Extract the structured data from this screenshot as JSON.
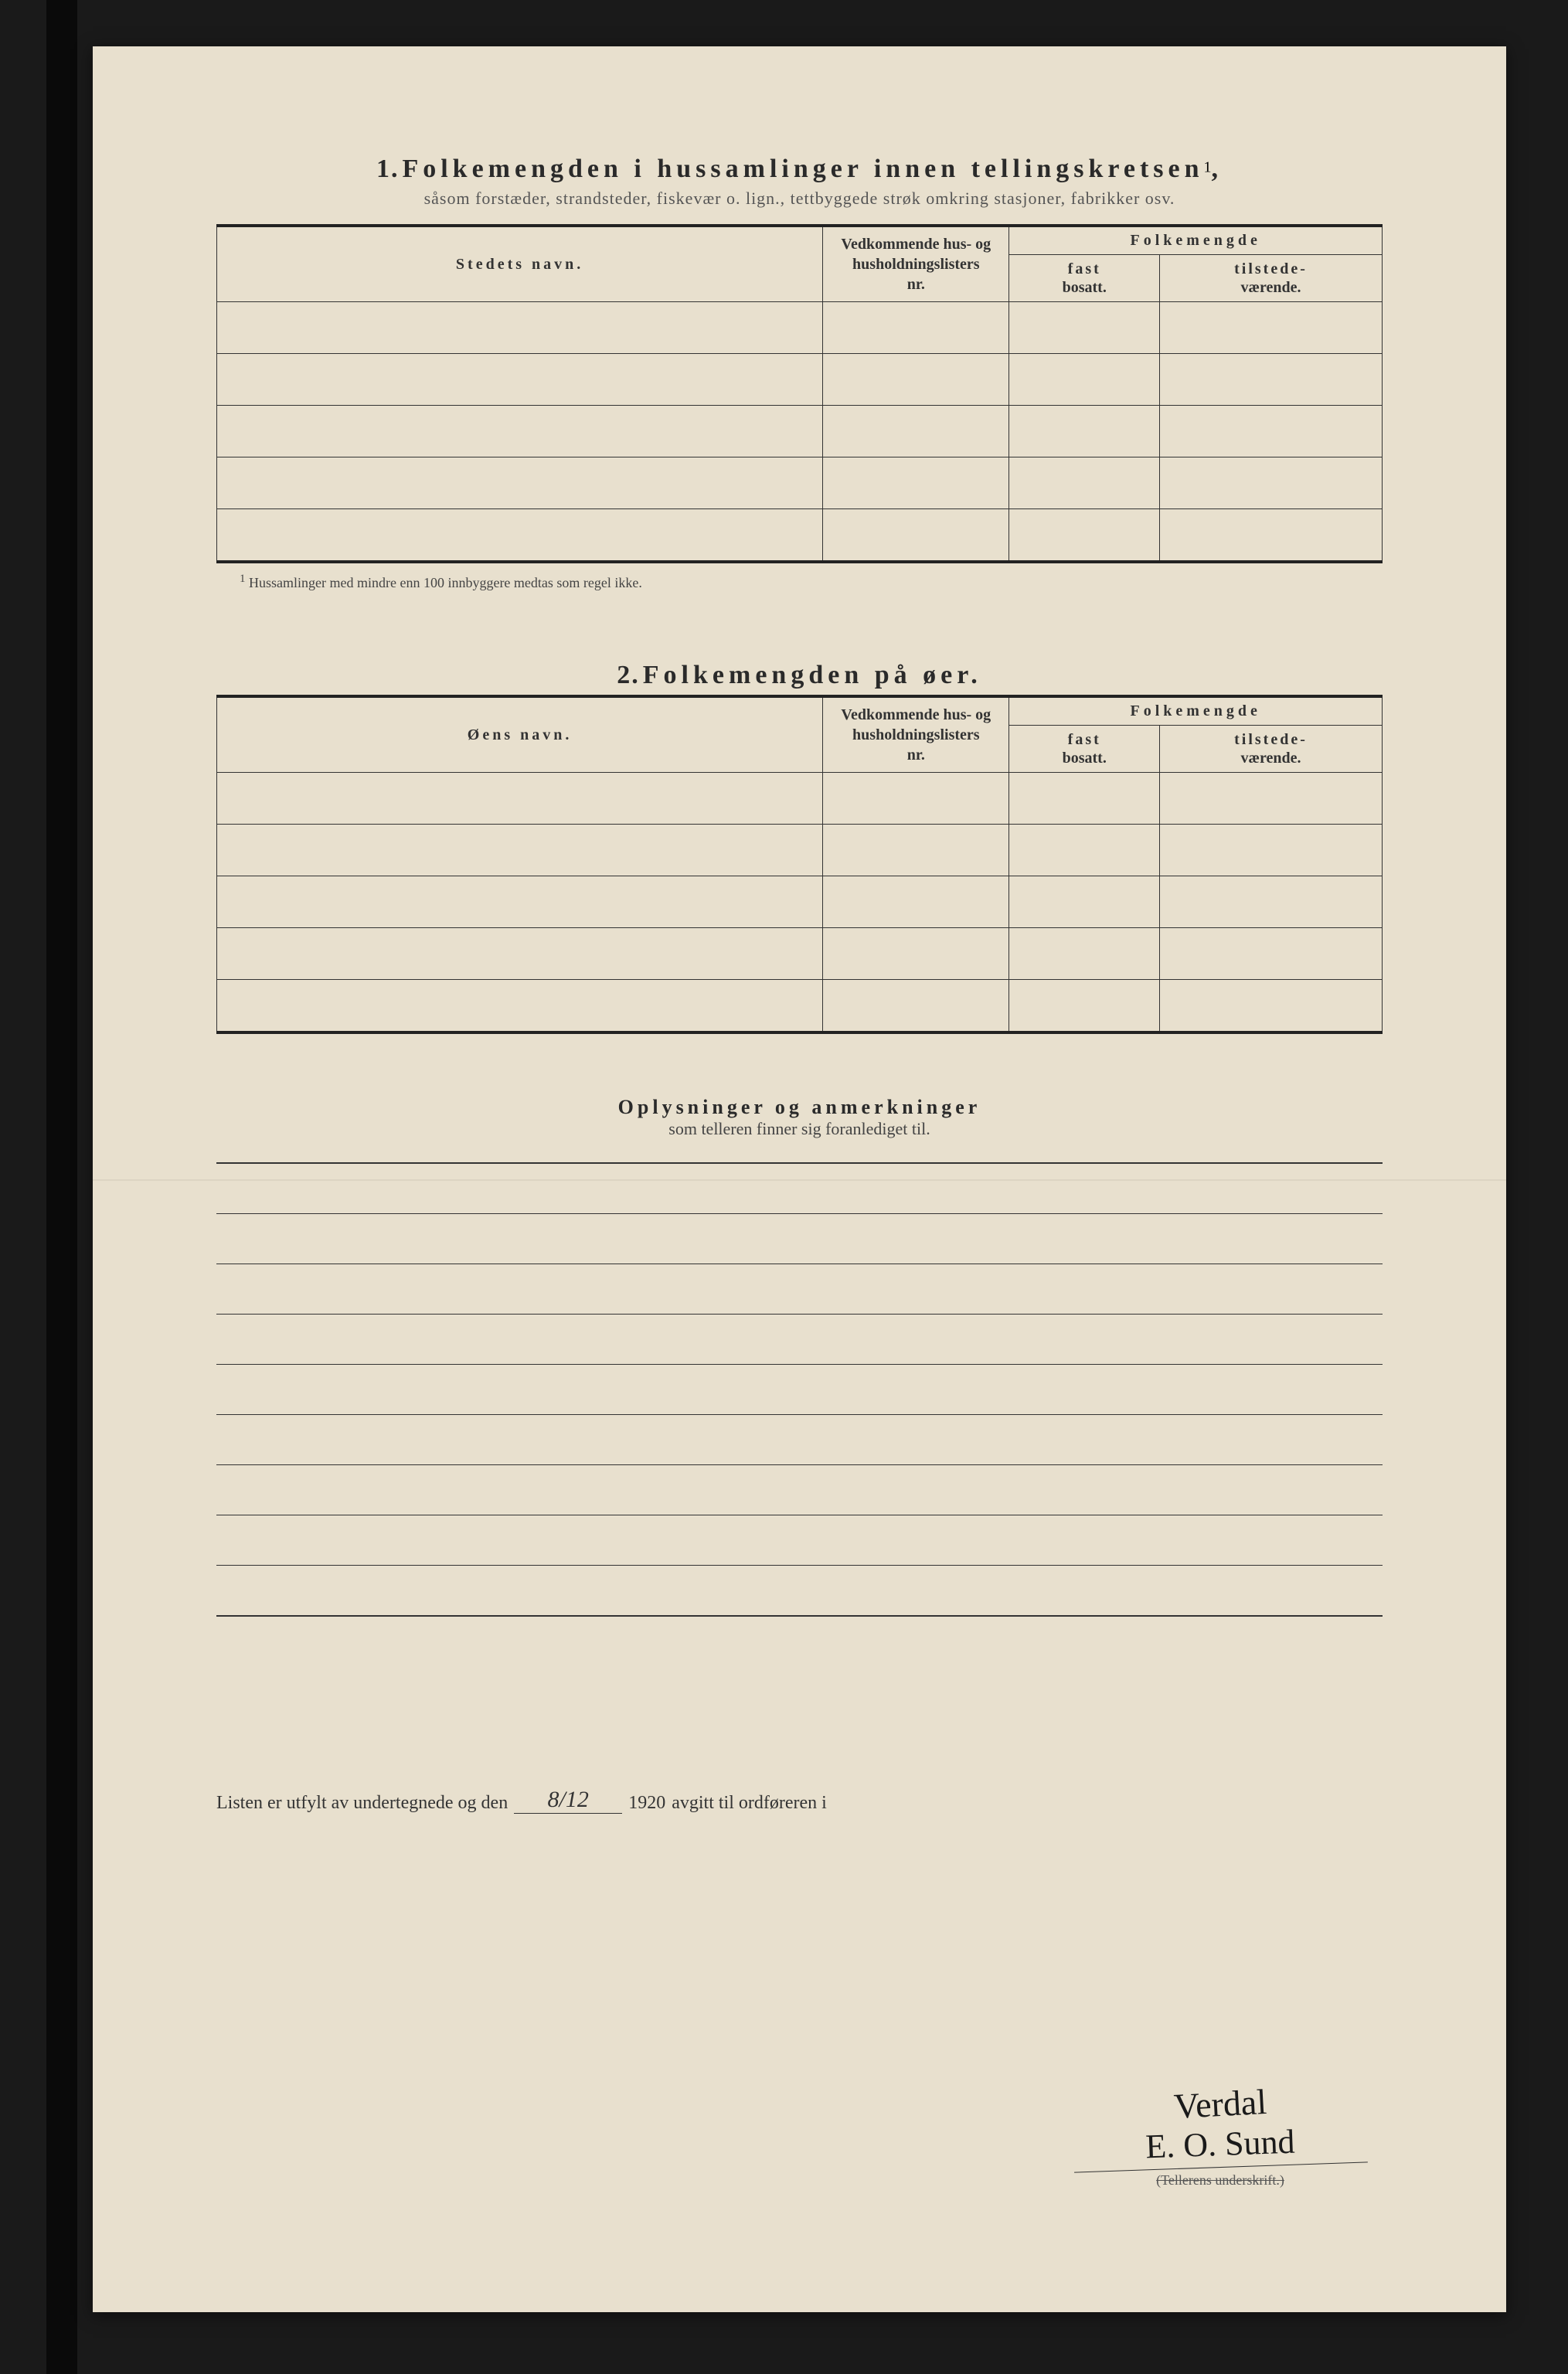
{
  "section1": {
    "number": "1.",
    "title": "Folkemengden i hussamlinger innen tellingskretsen",
    "title_sup": "1",
    "subtitle": "såsom forstæder, strandsteder, fiskevær o. lign., tettbyggede strøk omkring stasjoner, fabrikker osv.",
    "columns": {
      "name": "Stedets navn.",
      "nr_line1": "Vedkommende hus- og",
      "nr_line2": "husholdningslisters",
      "nr_line3": "nr.",
      "folk": "Folkemengde",
      "fast_b": "fast",
      "fast": "bosatt.",
      "til_b": "tilstede-",
      "til": "værende."
    },
    "row_count": 5,
    "footnote_marker": "1",
    "footnote": "Hussamlinger med mindre enn 100 innbyggere medtas som regel ikke."
  },
  "section2": {
    "number": "2.",
    "title": "Folkemengden på øer.",
    "columns": {
      "name": "Øens navn.",
      "nr_line1": "Vedkommende hus- og",
      "nr_line2": "husholdningslisters",
      "nr_line3": "nr.",
      "folk": "Folkemengde",
      "fast_b": "fast",
      "fast": "bosatt.",
      "til_b": "tilstede-",
      "til": "værende."
    },
    "row_count": 5
  },
  "section3": {
    "title": "Oplysninger og anmerkninger",
    "subtitle": "som telleren finner sig foranlediget til.",
    "line_count": 9
  },
  "attestation": {
    "prefix": "Listen er utfylt av undertegnede og den",
    "date_written": "8/12",
    "year": "1920",
    "mid": "avgitt til ordføreren i",
    "place_written": "Verdal",
    "signature": "E. O. Sund",
    "sig_label": "(Tellerens underskrift.)"
  },
  "styling": {
    "paper_bg": "#e8e0ce",
    "page_bg": "#1a1a1a",
    "ink": "#2a2a2a",
    "rule": "#333333",
    "muted": "#555555",
    "heading_fontsize": 34,
    "body_fontsize": 22,
    "small_fontsize": 18
  }
}
